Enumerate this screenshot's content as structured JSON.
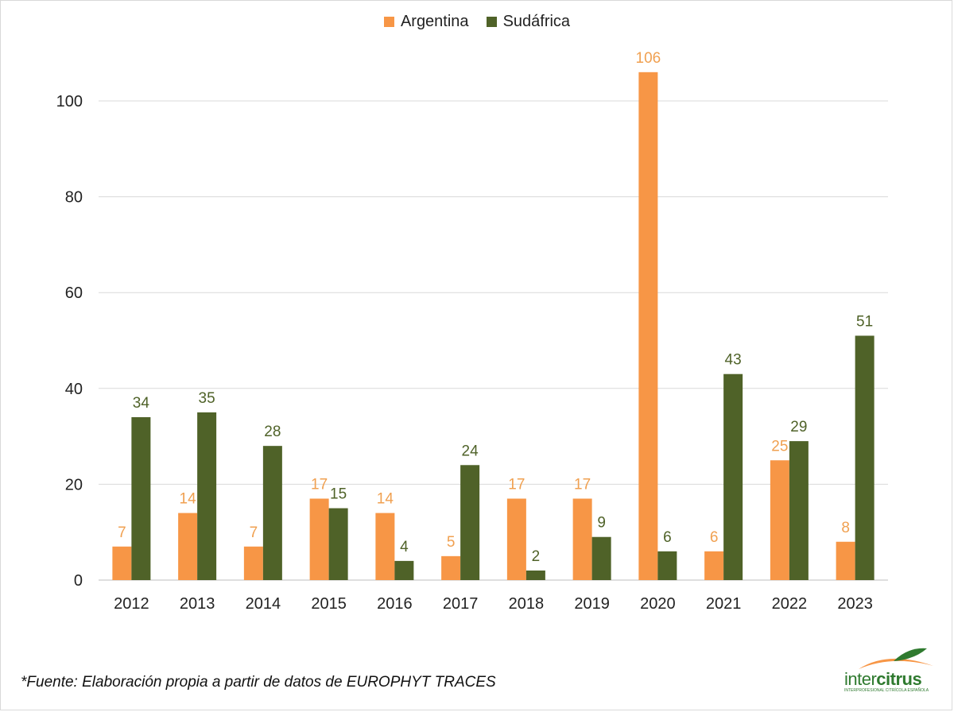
{
  "chart_data": {
    "type": "bar",
    "categories": [
      "2012",
      "2013",
      "2014",
      "2015",
      "2016",
      "2017",
      "2018",
      "2019",
      "2020",
      "2021",
      "2022",
      "2023"
    ],
    "series": [
      {
        "name": "Argentina",
        "color": "#F79646",
        "values": [
          7,
          14,
          7,
          17,
          14,
          5,
          17,
          17,
          106,
          6,
          25,
          8
        ]
      },
      {
        "name": "Sudáfrica",
        "color": "#4F6228",
        "values": [
          34,
          35,
          28,
          15,
          4,
          24,
          2,
          9,
          6,
          43,
          29,
          51
        ]
      }
    ],
    "yticks": [
      "0",
      "20",
      "40",
      "60",
      "80",
      "100"
    ],
    "ylim": [
      0,
      110
    ],
    "grid": true,
    "legend": "top-center",
    "label_colors": {
      "Argentina": "#F0A050",
      "Sudáfrica": "#4F6228"
    }
  },
  "footnote": "*Fuente: Elaboración propia a partir de datos de EUROPHYT TRACES",
  "logo": {
    "text_light": "inter",
    "text_bold": "citrus",
    "tagline": "INTERPROFESIONAL CITRÍCOLA ESPAÑOLA"
  }
}
